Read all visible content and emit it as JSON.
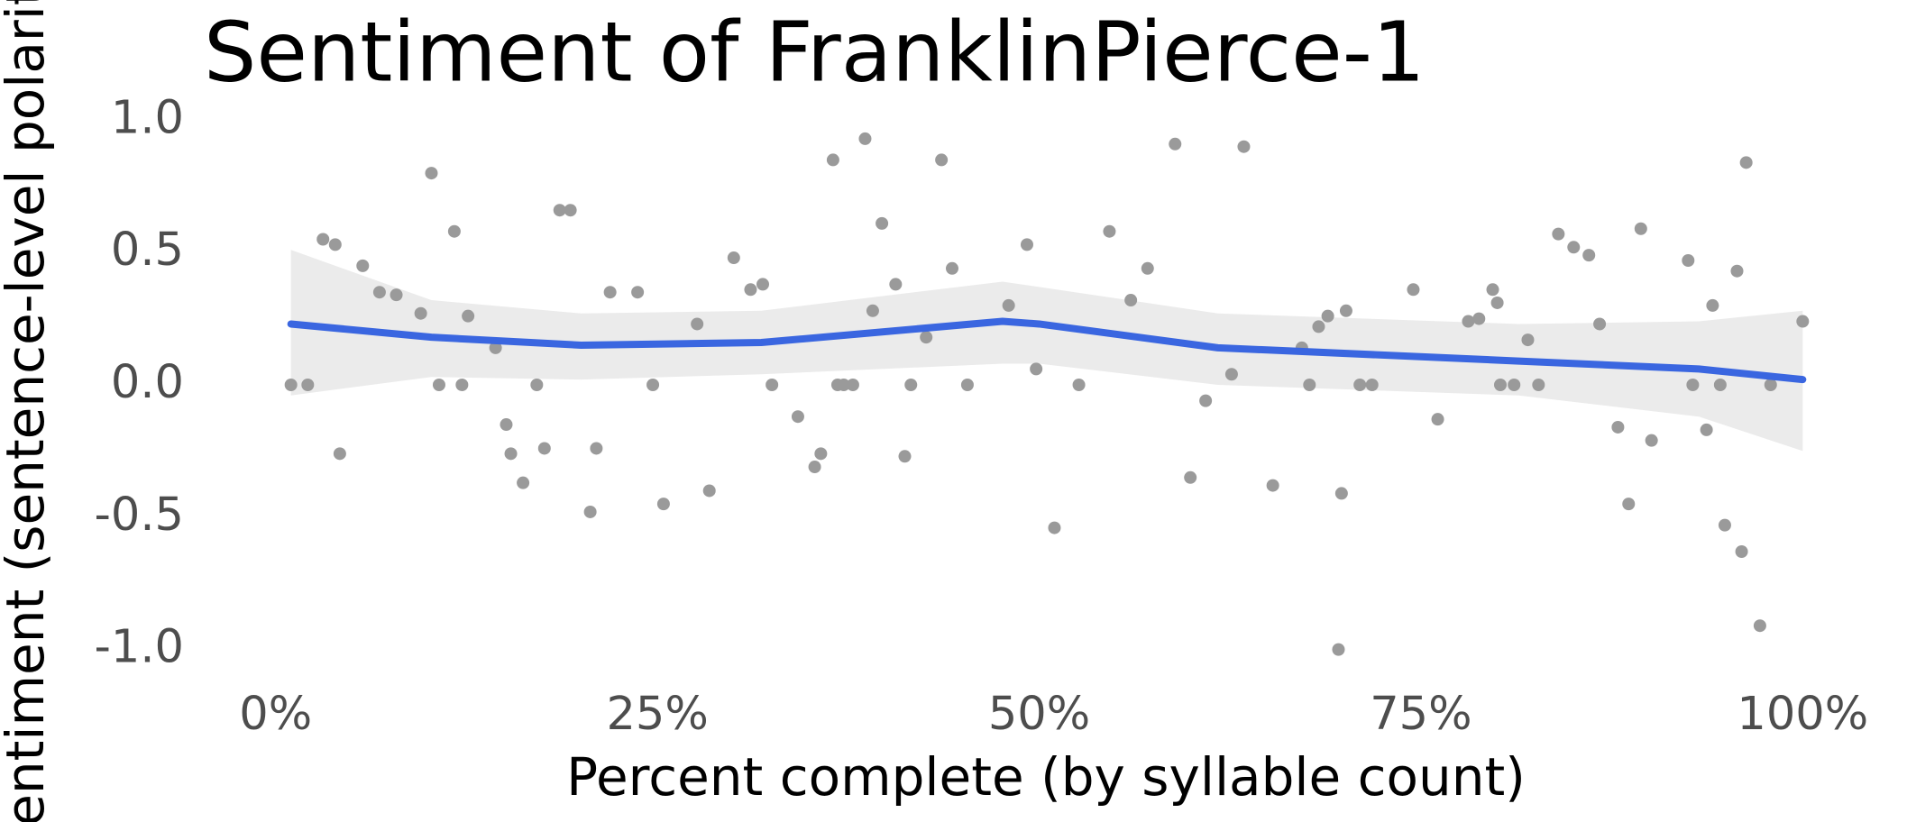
{
  "chart_data": {
    "type": "scatter",
    "title": "Sentiment of FranklinPierce-1",
    "x_label": "Percent complete (by syllable count)",
    "y_label": "Sentiment (sentence-level polarity)",
    "xlim": [
      -4,
      105
    ],
    "ylim": [
      -1.1,
      1.1
    ],
    "xticks": [
      {
        "value": 0,
        "label": "0%"
      },
      {
        "value": 25,
        "label": "25%"
      },
      {
        "value": 50,
        "label": "50%"
      },
      {
        "value": 75,
        "label": "75%"
      },
      {
        "value": 100,
        "label": "100%"
      }
    ],
    "yticks": [
      {
        "value": 1,
        "label": "1.0"
      },
      0.5,
      {
        "value": 0,
        "label": "0.0"
      },
      -0.5,
      {
        "value": -1,
        "label": "-1.0"
      }
    ],
    "grid": false,
    "color": "#9a9a9a",
    "x": [
      1.0,
      2.1,
      3.1,
      3.9,
      4.2,
      5.7,
      6.8,
      7.9,
      9.5,
      10.2,
      10.7,
      11.7,
      12.2,
      12.6,
      14.4,
      15.1,
      15.4,
      16.2,
      17.1,
      17.6,
      18.6,
      19.3,
      20.6,
      21.0,
      21.9,
      23.7,
      24.7,
      25.4,
      27.6,
      28.4,
      30.0,
      31.1,
      31.9,
      32.5,
      34.2,
      35.3,
      35.7,
      36.5,
      36.8,
      37.2,
      37.8,
      38.6,
      39.1,
      39.7,
      40.6,
      41.2,
      41.6,
      42.6,
      43.6,
      44.3,
      45.3,
      48.0,
      49.2,
      49.8,
      51.0,
      52.6,
      54.6,
      56.0,
      57.1,
      58.9,
      59.9,
      60.9,
      62.6,
      63.4,
      65.3,
      67.2,
      67.7,
      68.3,
      68.9,
      69.6,
      69.8,
      70.1,
      71.0,
      71.8,
      74.5,
      76.1,
      78.1,
      78.8,
      79.7,
      80.0,
      80.2,
      81.1,
      82.0,
      82.7,
      84.0,
      85.0,
      86.0,
      86.7,
      87.9,
      88.6,
      89.4,
      90.1,
      92.5,
      92.8,
      93.7,
      94.1,
      94.6,
      94.9,
      95.7,
      96.0,
      96.3,
      97.2,
      97.9,
      100.0
    ],
    "values": [
      0,
      0,
      0.55,
      0.53,
      -0.26,
      0.45,
      0.35,
      0.34,
      0.27,
      0.8,
      0,
      0.58,
      0,
      0.26,
      0.14,
      -0.15,
      -0.26,
      -0.37,
      0,
      -0.24,
      0.66,
      0.66,
      -0.48,
      -0.24,
      0.35,
      0.35,
      0,
      -0.45,
      0.23,
      -0.4,
      0.48,
      0.36,
      0.38,
      0,
      -0.12,
      -0.31,
      -0.26,
      0.85,
      0,
      0,
      0,
      0.93,
      0.28,
      0.61,
      0.38,
      -0.27,
      0,
      0.18,
      0.85,
      0.44,
      0,
      0.3,
      0.53,
      0.06,
      -0.54,
      0,
      0.58,
      0.32,
      0.44,
      0.91,
      -0.35,
      -0.06,
      0.04,
      0.9,
      -0.38,
      0.14,
      0,
      0.22,
      0.26,
      -1.0,
      -0.41,
      0.28,
      0,
      0,
      0.36,
      -0.13,
      0.24,
      0.25,
      0.36,
      0.31,
      0,
      0,
      0.17,
      0,
      0.57,
      0.52,
      0.49,
      0.23,
      -0.16,
      -0.45,
      0.59,
      -0.21,
      0.47,
      0,
      -0.17,
      0.3,
      0,
      -0.53,
      0.43,
      -0.63,
      0.84,
      -0.91,
      0,
      0.24
    ],
    "smooth": {
      "color": "#3a66e0",
      "band_color": "#ebebeb",
      "x": [
        1,
        10.2,
        20,
        31.8,
        47.6,
        50,
        61.7,
        81.4,
        93.2,
        100
      ],
      "values": [
        0.23,
        0.18,
        0.15,
        0.16,
        0.24,
        0.23,
        0.14,
        0.09,
        0.06,
        0.02
      ],
      "upper": [
        0.51,
        0.32,
        0.27,
        0.28,
        0.39,
        0.37,
        0.27,
        0.23,
        0.24,
        0.28
      ],
      "lower": [
        -0.04,
        0.03,
        0.02,
        0.04,
        0.08,
        0.08,
        0,
        -0.04,
        -0.12,
        -0.25
      ]
    }
  }
}
